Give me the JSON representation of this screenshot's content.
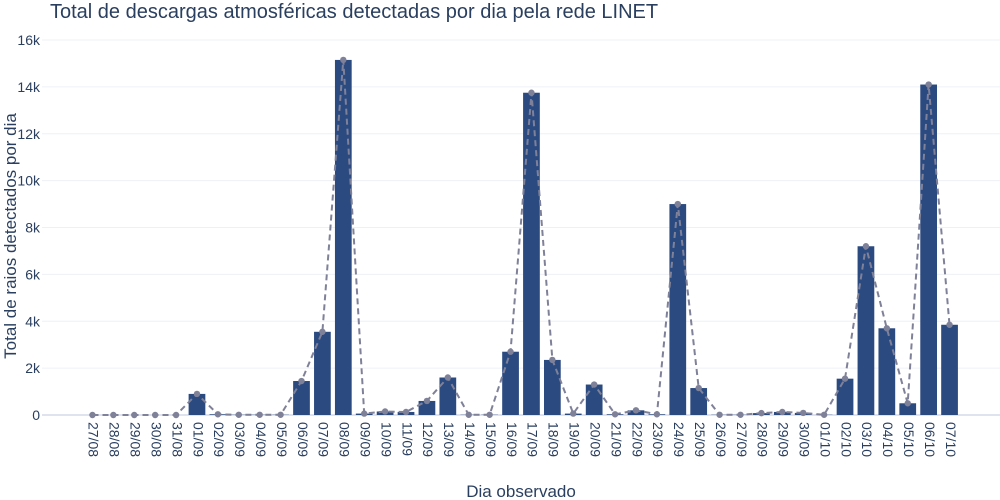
{
  "chart_data": {
    "type": "bar",
    "title": "Total de descargas atmosféricas detectadas por dia pela rede LINET",
    "xlabel": "Dia observado",
    "ylabel": "Total de raios detectados por dia",
    "ylim": [
      0,
      16000
    ],
    "yticks": [
      0,
      2000,
      4000,
      6000,
      8000,
      10000,
      12000,
      14000,
      16000
    ],
    "ytick_labels": [
      "0",
      "2k",
      "4k",
      "6k",
      "8k",
      "10k",
      "12k",
      "14k",
      "16k"
    ],
    "grid": true,
    "categories": [
      "27/08",
      "28/08",
      "29/08",
      "30/08",
      "31/08",
      "01/09",
      "02/09",
      "03/09",
      "04/09",
      "05/09",
      "06/09",
      "07/09",
      "08/09",
      "09/09",
      "10/09",
      "11/09",
      "12/09",
      "13/09",
      "14/09",
      "15/09",
      "16/09",
      "17/09",
      "18/09",
      "19/09",
      "20/09",
      "21/09",
      "22/09",
      "23/09",
      "24/09",
      "25/09",
      "26/09",
      "27/09",
      "28/09",
      "29/09",
      "30/09",
      "01/10",
      "02/10",
      "03/10",
      "04/10",
      "05/10",
      "06/10",
      "07/10"
    ],
    "series": [
      {
        "kind": "bar",
        "color": "#2b4a80",
        "values": [
          0,
          0,
          0,
          0,
          0,
          900,
          30,
          10,
          10,
          10,
          1450,
          3550,
          15150,
          60,
          150,
          130,
          600,
          1600,
          10,
          10,
          2700,
          13750,
          2350,
          60,
          1300,
          30,
          200,
          30,
          9000,
          1150,
          10,
          10,
          80,
          130,
          90,
          10,
          1550,
          7200,
          3700,
          500,
          14100,
          3850
        ]
      },
      {
        "kind": "line",
        "style": "dashed",
        "color": "#7f8199",
        "values": [
          0,
          0,
          0,
          0,
          0,
          900,
          30,
          10,
          10,
          10,
          1450,
          3550,
          15150,
          60,
          150,
          130,
          600,
          1600,
          10,
          10,
          2700,
          13750,
          2350,
          60,
          1300,
          30,
          200,
          30,
          9000,
          1150,
          10,
          10,
          80,
          130,
          90,
          10,
          1550,
          7200,
          3700,
          500,
          14100,
          3850
        ]
      }
    ]
  }
}
